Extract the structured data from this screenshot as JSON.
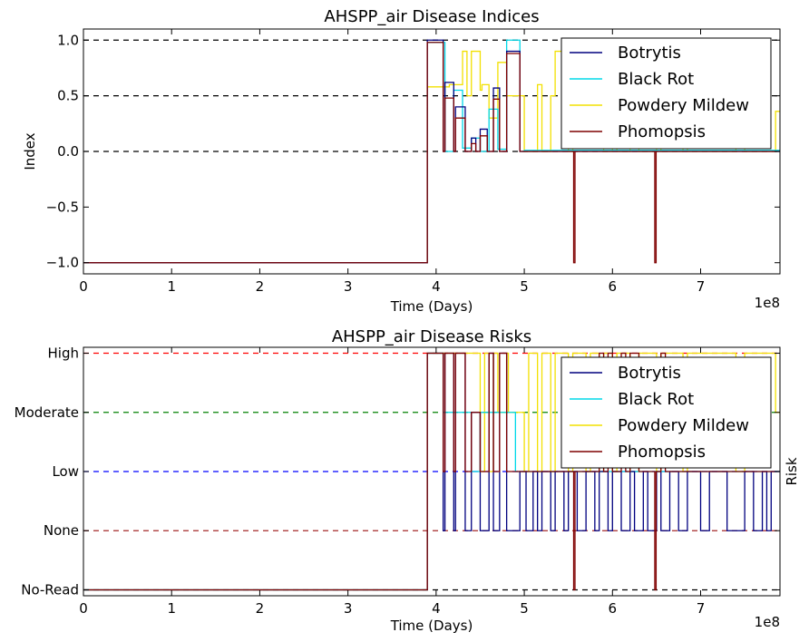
{
  "figure": {
    "background": "#ffffff"
  },
  "legend_entries": [
    {
      "name": "Botrytis",
      "color": "#00007f"
    },
    {
      "name": "Black Rot",
      "color": "#00d8e8"
    },
    {
      "name": "Powdery Mildew",
      "color": "#f2e000"
    },
    {
      "name": "Phomopsis",
      "color": "#7f0000"
    }
  ],
  "chart_data": [
    {
      "type": "line",
      "drawstyle": "steps",
      "title": "AHSPP_air Disease Indices",
      "xlabel": "Time (Days)",
      "ylabel": "Index",
      "x_offset_label": "1e8",
      "xlim": [
        0,
        7.9
      ],
      "ylim": [
        -1.1,
        1.1
      ],
      "x_ticks": [
        0,
        1,
        2,
        3,
        4,
        5,
        6,
        7
      ],
      "x_tick_labels": [
        "0",
        "1",
        "2",
        "3",
        "4",
        "5",
        "6",
        "7"
      ],
      "y_ticks": [
        -1.0,
        -0.5,
        0.0,
        0.5,
        1.0
      ],
      "y_tick_labels": [
        "−1.0",
        "−0.5",
        "0.0",
        "0.5",
        "1.0"
      ],
      "reference_lines": [
        {
          "y": 1.0,
          "color": "#000000"
        },
        {
          "y": 0.5,
          "color": "#000000"
        },
        {
          "y": 0.0,
          "color": "#000000"
        }
      ],
      "legend_position": "upper right",
      "series": [
        {
          "name": "Powdery Mildew",
          "color": "#f2e000",
          "x": [
            0,
            3.9,
            4.15,
            4.3,
            4.35,
            4.4,
            4.5,
            4.52,
            4.6,
            4.7,
            4.8,
            5.0,
            5.15,
            5.2,
            5.3,
            5.35,
            5.5,
            5.55,
            5.7,
            5.75,
            5.85,
            5.9,
            6.0,
            6.05,
            6.2,
            6.3,
            6.5,
            6.55,
            6.8,
            6.85,
            7.4,
            7.5,
            7.85,
            7.9
          ],
          "y": [
            -1.0,
            0.58,
            0.6,
            0.9,
            0.5,
            0.9,
            0.55,
            0.6,
            0.3,
            0.8,
            0.5,
            0.0,
            0.6,
            0.0,
            0.5,
            0.9,
            0.0,
            0.5,
            0.9,
            0.3,
            0.85,
            0.0,
            0.5,
            0.0,
            0.4,
            0.0,
            0.5,
            0.0,
            0.3,
            0.0,
            0.2,
            0.0,
            0.36,
            0.36
          ]
        },
        {
          "name": "Black Rot",
          "color": "#00d8e8",
          "x": [
            0,
            3.9,
            4.1,
            4.2,
            4.3,
            4.4,
            4.5,
            4.6,
            4.7,
            4.8,
            4.95,
            5.0,
            7.9
          ],
          "y": [
            -1.0,
            0.98,
            0.0,
            0.55,
            0.03,
            0.12,
            0.0,
            0.38,
            0.02,
            1.0,
            0.0,
            0.01,
            0.01
          ]
        },
        {
          "name": "Botrytis",
          "color": "#00007f",
          "x": [
            0,
            3.9,
            4.08,
            4.1,
            4.2,
            4.22,
            4.33,
            4.4,
            4.45,
            4.5,
            4.58,
            4.65,
            4.72,
            4.8,
            4.95,
            5.0,
            7.9
          ],
          "y": [
            -1.0,
            1.0,
            0.0,
            0.62,
            0.0,
            0.4,
            0.0,
            0.12,
            0.0,
            0.2,
            0.0,
            0.57,
            0.0,
            0.9,
            0.0,
            0.0,
            0.0
          ]
        },
        {
          "name": "Phomopsis",
          "color": "#7f0000",
          "x": [
            0,
            3.9,
            4.08,
            4.1,
            4.2,
            4.22,
            4.33,
            4.4,
            4.45,
            4.5,
            4.58,
            4.65,
            4.72,
            4.8,
            4.95,
            5.56,
            5.575,
            6.48,
            6.495,
            7.9
          ],
          "y": [
            -1.0,
            0.98,
            0.0,
            0.48,
            0.0,
            0.3,
            0.0,
            0.07,
            0.0,
            0.14,
            0.0,
            0.47,
            0.0,
            0.88,
            0.0,
            -1.0,
            0.0,
            -1.0,
            0.0,
            0.0
          ]
        }
      ]
    },
    {
      "type": "line",
      "drawstyle": "steps",
      "title": "AHSPP_air Disease Risks",
      "xlabel": "Time (Days)",
      "ylabel": "Risk",
      "x_offset_label": "1e8",
      "xlim": [
        0,
        7.9
      ],
      "ylim": [
        -0.1,
        4.1
      ],
      "x_ticks": [
        0,
        1,
        2,
        3,
        4,
        5,
        6,
        7
      ],
      "x_tick_labels": [
        "0",
        "1",
        "2",
        "3",
        "4",
        "5",
        "6",
        "7"
      ],
      "y_ticks": [
        0,
        1,
        2,
        3,
        4
      ],
      "y_tick_labels": [
        "No-Read",
        "None",
        "Low",
        "Moderate",
        "High"
      ],
      "reference_lines": [
        {
          "y": 4,
          "color": "#ff0000"
        },
        {
          "y": 3,
          "color": "#008000"
        },
        {
          "y": 2,
          "color": "#0000ff"
        },
        {
          "y": 1,
          "color": "#a52a2a"
        },
        {
          "y": 0,
          "color": "#000000"
        }
      ],
      "legend_position": "upper right",
      "series": [
        {
          "name": "Powdery Mildew",
          "color": "#f2e000",
          "x": [
            0,
            3.9,
            4.5,
            4.55,
            4.6,
            4.65,
            4.7,
            4.8,
            4.82,
            5.0,
            5.05,
            5.15,
            5.2,
            5.3,
            5.35,
            5.5,
            5.55,
            5.7,
            5.75,
            5.85,
            5.9,
            6.0,
            6.05,
            6.2,
            6.3,
            6.5,
            6.55,
            6.8,
            6.85,
            7.4,
            7.5,
            7.85,
            7.9
          ],
          "y": [
            0,
            4,
            2,
            4,
            2,
            4,
            3,
            4,
            3,
            2,
            4,
            2,
            4,
            2,
            4,
            2,
            4,
            2,
            4,
            2,
            4,
            2,
            4,
            2,
            4,
            2,
            4,
            2,
            4,
            2,
            4,
            3,
            3
          ]
        },
        {
          "name": "Black Rot",
          "color": "#00d8e8",
          "x": [
            0,
            3.9,
            4.08,
            4.4,
            4.5,
            4.9,
            5.0,
            7.9
          ],
          "y": [
            0,
            4,
            3,
            2,
            3,
            2,
            2,
            2
          ]
        },
        {
          "name": "Botrytis",
          "color": "#00007f",
          "x": [
            0,
            3.9,
            4.08,
            4.1,
            4.2,
            4.22,
            4.33,
            4.4,
            4.5,
            4.6,
            4.65,
            4.72,
            4.8,
            4.95,
            5.02,
            5.1,
            5.15,
            5.2,
            5.3,
            5.35,
            5.45,
            5.5,
            5.6,
            5.7,
            5.8,
            5.85,
            5.95,
            6.0,
            6.1,
            6.2,
            6.25,
            6.35,
            6.4,
            6.5,
            6.55,
            6.65,
            6.75,
            6.85,
            7.0,
            7.1,
            7.3,
            7.5,
            7.6,
            7.7,
            7.75,
            7.8,
            7.9
          ],
          "y": [
            0,
            4,
            1,
            4,
            1,
            4,
            1,
            3,
            1,
            4,
            1,
            4,
            1,
            2,
            1,
            2,
            1,
            2,
            1,
            2,
            1,
            2,
            1,
            2,
            1,
            2,
            1,
            2,
            1,
            2,
            1,
            2,
            1,
            2,
            1,
            2,
            1,
            2,
            1,
            2,
            1,
            2,
            1,
            2,
            1,
            2,
            2
          ]
        },
        {
          "name": "Phomopsis",
          "color": "#7f0000",
          "x": [
            0,
            3.9,
            4.08,
            4.1,
            4.2,
            4.22,
            4.33,
            4.4,
            4.5,
            4.6,
            4.65,
            4.72,
            4.8,
            4.95,
            5.56,
            5.575,
            5.85,
            5.9,
            5.95,
            6.0,
            6.1,
            6.15,
            6.2,
            6.3,
            6.48,
            6.495,
            6.55,
            6.6,
            7.9
          ],
          "y": [
            0,
            4,
            2,
            4,
            2,
            4,
            2,
            3,
            2,
            4,
            2,
            4,
            2,
            2,
            0,
            2,
            4,
            2,
            4,
            2,
            4,
            2,
            4,
            2,
            0,
            2,
            4,
            2,
            2
          ]
        }
      ]
    }
  ]
}
